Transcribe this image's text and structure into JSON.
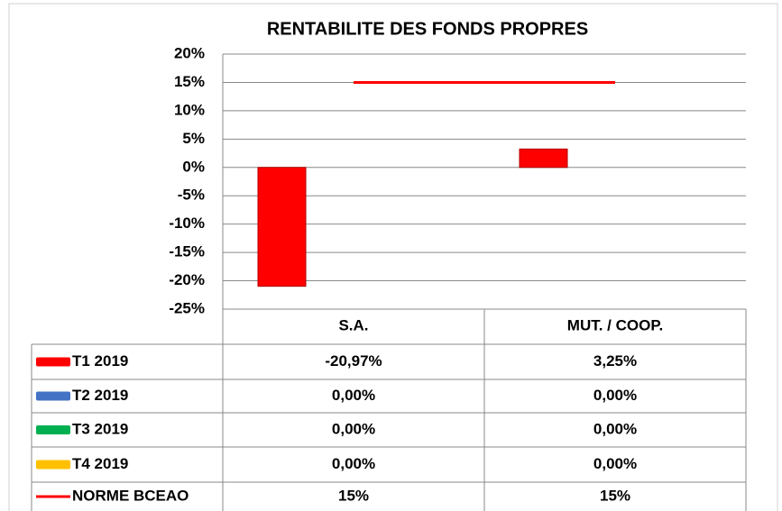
{
  "chart_data": {
    "type": "bar",
    "title": "RENTABILITE DES FONDS PROPRES",
    "categories": [
      "S.A.",
      "MUT. / COOP."
    ],
    "series": [
      {
        "name": "T1 2019",
        "type": "bar",
        "color": "#ff0000",
        "values": [
          -20.97,
          3.25
        ],
        "value_labels": [
          "-20,97%",
          "3,25%"
        ]
      },
      {
        "name": "T2 2019",
        "type": "bar",
        "color": "#4472c4",
        "values": [
          0,
          0
        ],
        "value_labels": [
          "0,00%",
          "0,00%"
        ]
      },
      {
        "name": "T3 2019",
        "type": "bar",
        "color": "#00b050",
        "values": [
          0,
          0
        ],
        "value_labels": [
          "0,00%",
          "0,00%"
        ]
      },
      {
        "name": "T4 2019",
        "type": "bar",
        "color": "#ffc000",
        "values": [
          0,
          0
        ],
        "value_labels": [
          "0,00%",
          "0,00%"
        ]
      },
      {
        "name": "NORME BCEAO",
        "type": "line",
        "color": "#ff0000",
        "values": [
          15,
          15
        ],
        "value_labels": [
          "15%",
          "15%"
        ]
      }
    ],
    "ylim": [
      -25,
      20
    ],
    "yticks": [
      {
        "value": -25,
        "label": "-25%"
      },
      {
        "value": -20,
        "label": "-20%"
      },
      {
        "value": -15,
        "label": "-15%"
      },
      {
        "value": -10,
        "label": "-10%"
      },
      {
        "value": -5,
        "label": "-5%"
      },
      {
        "value": 0,
        "label": "0%"
      },
      {
        "value": 5,
        "label": "5%"
      },
      {
        "value": 10,
        "label": "10%"
      },
      {
        "value": 15,
        "label": "15%"
      },
      {
        "value": 20,
        "label": "20%"
      }
    ],
    "grid": true
  }
}
